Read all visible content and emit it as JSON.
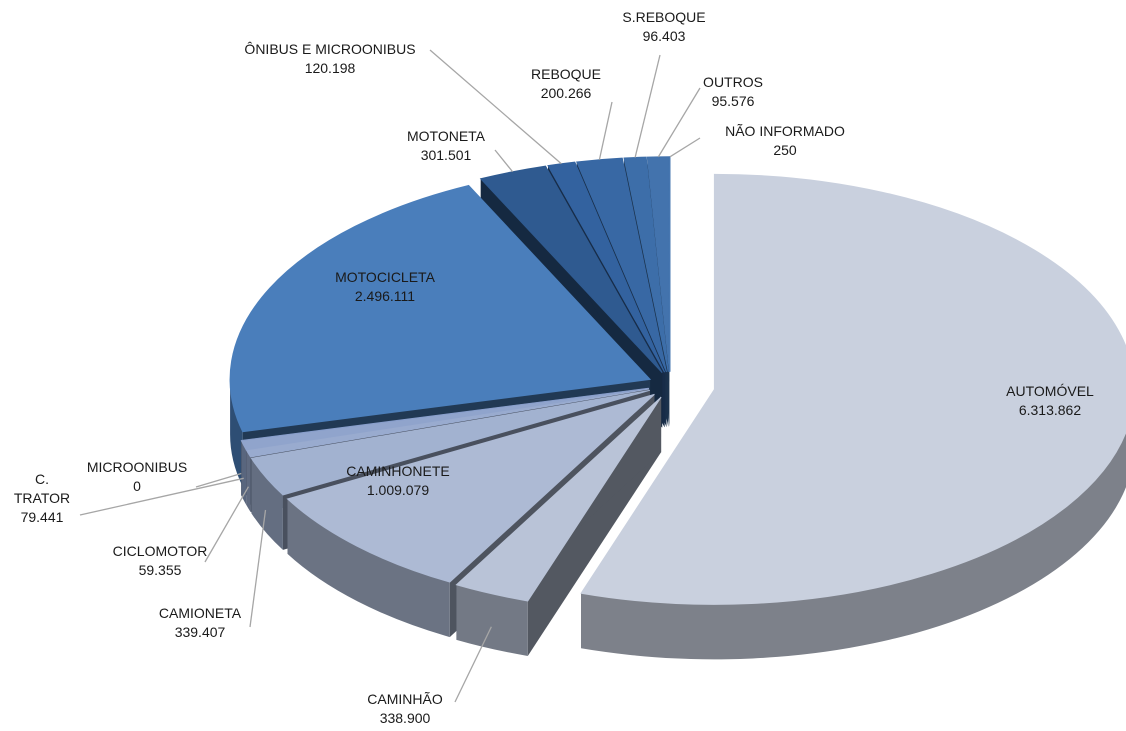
{
  "chart_data": {
    "type": "pie3d",
    "categories": [
      "AUTOMÓVEL",
      "CAMINHÃO",
      "CAMINHONETE",
      "CAMIONETA",
      "CICLOMOTOR",
      "C. TRATOR",
      "MICROONIBUS",
      "MOTOCICLETA",
      "MOTONETA",
      "ÔNIBUS E MICROONIBUS",
      "REBOQUE",
      "S.REBOQUE",
      "OUTROS",
      "NÃO INFORMADO"
    ],
    "values": [
      6313862,
      338900,
      1009079,
      339407,
      59355,
      79441,
      0,
      2496111,
      301501,
      120198,
      200266,
      96403,
      95576,
      250
    ],
    "value_labels": [
      "6.313.862",
      "338.900",
      "1.009.079",
      "339.407",
      "59.355",
      "79.441",
      "0",
      "2.496.111",
      "301.501",
      "120.198",
      "200.266",
      "96.403",
      "95.576",
      "250"
    ],
    "colors": [
      "#c9d0de",
      "#b9c3d7",
      "#adbad4",
      "#a2b2d0",
      "#99abcf",
      "#90a4cc",
      "#889ecb",
      "#4a7ebb",
      "#2f5a90",
      "#33629f",
      "#3868a4",
      "#3d6ea9",
      "#4373ad",
      "#4878b2"
    ]
  }
}
